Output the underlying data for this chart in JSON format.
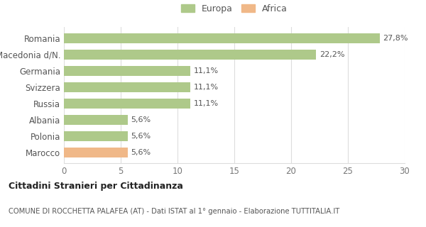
{
  "categories": [
    "Marocco",
    "Polonia",
    "Albania",
    "Russia",
    "Svizzera",
    "Germania",
    "Macedonia d/N.",
    "Romania"
  ],
  "values": [
    5.6,
    5.6,
    5.6,
    11.1,
    11.1,
    11.1,
    22.2,
    27.8
  ],
  "labels": [
    "5,6%",
    "5,6%",
    "5,6%",
    "11,1%",
    "11,1%",
    "11,1%",
    "22,2%",
    "27,8%"
  ],
  "colors": [
    "#f0b888",
    "#aec98a",
    "#aec98a",
    "#aec98a",
    "#aec98a",
    "#aec98a",
    "#aec98a",
    "#aec98a"
  ],
  "europa_color": "#aec98a",
  "africa_color": "#f0b888",
  "xlim": [
    0,
    30
  ],
  "xticks": [
    0,
    5,
    10,
    15,
    20,
    25,
    30
  ],
  "title_bold": "Cittadini Stranieri per Cittadinanza",
  "subtitle": "COMUNE DI ROCCHETTA PALAFEA (AT) - Dati ISTAT al 1° gennaio - Elaborazione TUTTITALIA.IT",
  "bg_color": "#ffffff",
  "grid_color": "#dddddd",
  "legend_europa": "Europa",
  "legend_africa": "Africa"
}
